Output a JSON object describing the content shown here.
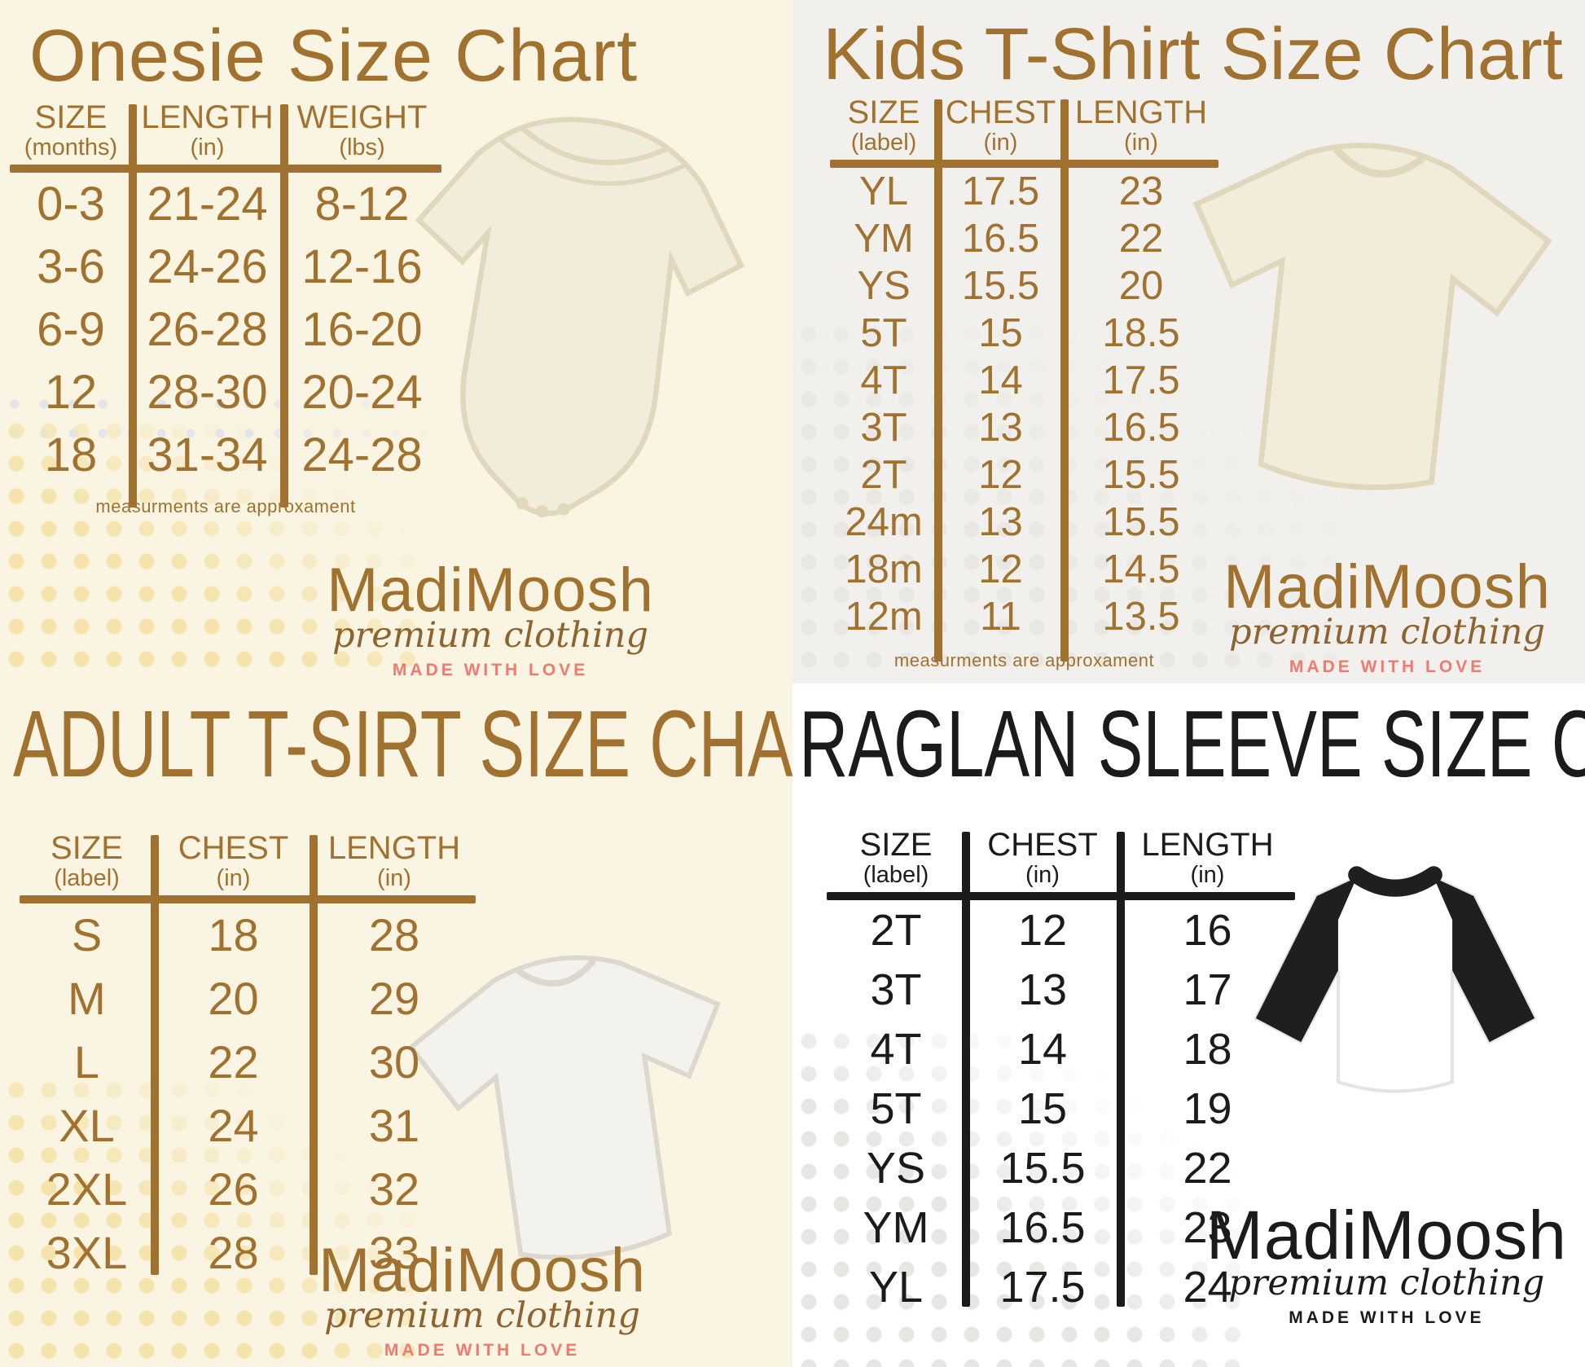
{
  "brand": {
    "name": "MadiMoosh",
    "tagline": "premium clothing",
    "slogan": "MADE WITH LOVE"
  },
  "panels": {
    "onesie": {
      "title": "Onesie Size Chart",
      "note": "measurments are approxament",
      "table": {
        "columns": [
          {
            "label": "SIZE",
            "unit": "(months)"
          },
          {
            "label": "LENGTH",
            "unit": "(in)"
          },
          {
            "label": "WEIGHT",
            "unit": "(lbs)"
          }
        ],
        "rows": [
          [
            "0-3",
            "21-24",
            "8-12"
          ],
          [
            "3-6",
            "24-26",
            "12-16"
          ],
          [
            "6-9",
            "26-28",
            "16-20"
          ],
          [
            "12",
            "28-30",
            "20-24"
          ],
          [
            "18",
            "31-34",
            "24-28"
          ]
        ]
      }
    },
    "kids": {
      "title": "Kids T-Shirt Size Chart",
      "note": "measurments are approxament",
      "table": {
        "columns": [
          {
            "label": "SIZE",
            "unit": "(label)"
          },
          {
            "label": "CHEST",
            "unit": "(in)"
          },
          {
            "label": "LENGTH",
            "unit": "(in)"
          }
        ],
        "rows": [
          [
            "YL",
            "17.5",
            "23"
          ],
          [
            "YM",
            "16.5",
            "22"
          ],
          [
            "YS",
            "15.5",
            "20"
          ],
          [
            "5T",
            "15",
            "18.5"
          ],
          [
            "4T",
            "14",
            "17.5"
          ],
          [
            "3T",
            "13",
            "16.5"
          ],
          [
            "2T",
            "12",
            "15.5"
          ],
          [
            "24m",
            "13",
            "15.5"
          ],
          [
            "18m",
            "12",
            "14.5"
          ],
          [
            "12m",
            "11",
            "13.5"
          ]
        ]
      }
    },
    "adult": {
      "title": "ADULT T-SIRT SIZE CHART",
      "table": {
        "columns": [
          {
            "label": "SIZE",
            "unit": "(label)"
          },
          {
            "label": "CHEST",
            "unit": "(in)"
          },
          {
            "label": "LENGTH",
            "unit": "(in)"
          }
        ],
        "rows": [
          [
            "S",
            "18",
            "28"
          ],
          [
            "M",
            "20",
            "29"
          ],
          [
            "L",
            "22",
            "30"
          ],
          [
            "XL",
            "24",
            "31"
          ],
          [
            "2XL",
            "26",
            "32"
          ],
          [
            "3XL",
            "28",
            "33"
          ]
        ]
      }
    },
    "raglan": {
      "title": "RAGLAN SLEEVE SIZE CHART",
      "table": {
        "columns": [
          {
            "label": "SIZE",
            "unit": "(label)"
          },
          {
            "label": "CHEST",
            "unit": "(in)"
          },
          {
            "label": "LENGTH",
            "unit": "(in)"
          }
        ],
        "rows": [
          [
            "2T",
            "12",
            "16"
          ],
          [
            "3T",
            "13",
            "17"
          ],
          [
            "4T",
            "14",
            "18"
          ],
          [
            "5T",
            "15",
            "19"
          ],
          [
            "YS",
            "15.5",
            "22"
          ],
          [
            "YM",
            "16.5",
            "23"
          ],
          [
            "YL",
            "17.5",
            "24"
          ]
        ]
      }
    }
  },
  "colors": {
    "brown": "#a1722f",
    "brown-dark": "#8d6330",
    "black": "#1b1b1b",
    "pink": "#ef7a6f",
    "cream_bg": "#faf4e2",
    "gray_bg": "#f1f0ed",
    "white_bg": "#ffffff",
    "dot_yellow": "#f5e3ab",
    "dot_gray": "#e7e6e3",
    "dot_faint": "#e4e4ed",
    "garment-cream": "#f2ecda",
    "garment-cream-edge": "#e0d7bd",
    "garment-white": "#f4f2ed",
    "garment-white-edge": "#dcd8cf",
    "raglan-black": "#1f1f1f"
  },
  "chart_data": [
    {
      "type": "table",
      "title": "Onesie Size Chart",
      "columns": [
        "SIZE (months)",
        "LENGTH (in)",
        "WEIGHT (lbs)"
      ],
      "rows": [
        [
          "0-3",
          "21-24",
          "8-12"
        ],
        [
          "3-6",
          "24-26",
          "12-16"
        ],
        [
          "6-9",
          "26-28",
          "16-20"
        ],
        [
          "12",
          "28-30",
          "20-24"
        ],
        [
          "18",
          "31-34",
          "24-28"
        ]
      ],
      "note": "measurments are approxament"
    },
    {
      "type": "table",
      "title": "Kids T-Shirt Size Chart",
      "columns": [
        "SIZE (label)",
        "CHEST (in)",
        "LENGTH (in)"
      ],
      "rows": [
        [
          "YL",
          "17.5",
          "23"
        ],
        [
          "YM",
          "16.5",
          "22"
        ],
        [
          "YS",
          "15.5",
          "20"
        ],
        [
          "5T",
          "15",
          "18.5"
        ],
        [
          "4T",
          "14",
          "17.5"
        ],
        [
          "3T",
          "13",
          "16.5"
        ],
        [
          "2T",
          "12",
          "15.5"
        ],
        [
          "24m",
          "13",
          "15.5"
        ],
        [
          "18m",
          "12",
          "14.5"
        ],
        [
          "12m",
          "11",
          "13.5"
        ]
      ],
      "note": "measurments are approxament"
    },
    {
      "type": "table",
      "title": "ADULT T-SIRT SIZE CHART",
      "columns": [
        "SIZE (label)",
        "CHEST (in)",
        "LENGTH (in)"
      ],
      "rows": [
        [
          "S",
          "18",
          "28"
        ],
        [
          "M",
          "20",
          "29"
        ],
        [
          "L",
          "22",
          "30"
        ],
        [
          "XL",
          "24",
          "31"
        ],
        [
          "2XL",
          "26",
          "32"
        ],
        [
          "3XL",
          "28",
          "33"
        ]
      ]
    },
    {
      "type": "table",
      "title": "RAGLAN SLEEVE SIZE CHART",
      "columns": [
        "SIZE (label)",
        "CHEST (in)",
        "LENGTH (in)"
      ],
      "rows": [
        [
          "2T",
          "12",
          "16"
        ],
        [
          "3T",
          "13",
          "17"
        ],
        [
          "4T",
          "14",
          "18"
        ],
        [
          "5T",
          "15",
          "19"
        ],
        [
          "YS",
          "15.5",
          "22"
        ],
        [
          "YM",
          "16.5",
          "23"
        ],
        [
          "YL",
          "17.5",
          "24"
        ]
      ]
    }
  ]
}
